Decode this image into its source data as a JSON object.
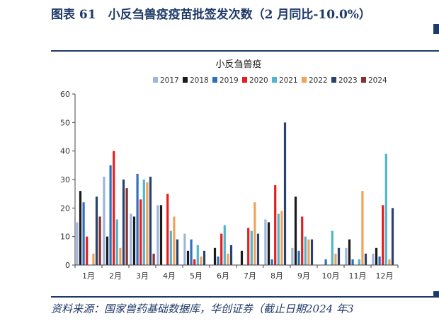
{
  "header": {
    "title": "图表 61　小反刍兽疫疫苗批签发次数（2 月同比-10.0%）"
  },
  "footer": {
    "source": "资料来源：国家兽药基础数据库，华创证券（截止日期2024 年3"
  },
  "chart_data": {
    "type": "bar",
    "title": "小反刍兽疫",
    "xlabel": "",
    "ylabel": "",
    "ylim": [
      0,
      60
    ],
    "yticks": [
      0,
      10,
      20,
      30,
      40,
      50,
      60
    ],
    "grid": false,
    "legend": "top-right",
    "categories": [
      "1月",
      "2月",
      "3月",
      "4月",
      "5月",
      "6月",
      "7月",
      "8月",
      "9月",
      "10月",
      "11月",
      "12月"
    ],
    "series": [
      {
        "name": "2017",
        "color": "#9cb6dc",
        "values": [
          15,
          31,
          18,
          21,
          11,
          0,
          0,
          16,
          6,
          0,
          6,
          4
        ]
      },
      {
        "name": "2018",
        "color": "#1b1b1b",
        "values": [
          26,
          10,
          17,
          21,
          5,
          6,
          5,
          15,
          24,
          0,
          9,
          6
        ]
      },
      {
        "name": "2019",
        "color": "#2f6fbf",
        "values": [
          22,
          35,
          32,
          0,
          9,
          3,
          0,
          2,
          5,
          2,
          2,
          3
        ]
      },
      {
        "name": "2020",
        "color": "#e61e1e",
        "values": [
          10,
          40,
          23,
          25,
          2,
          11,
          13,
          28,
          17,
          0,
          0,
          21
        ]
      },
      {
        "name": "2021",
        "color": "#4fb6cc",
        "values": [
          0,
          16,
          30,
          12,
          7,
          14,
          12,
          18,
          10,
          12,
          2,
          39
        ]
      },
      {
        "name": "2022",
        "color": "#f0a25c",
        "values": [
          4,
          6,
          29,
          17,
          3,
          4,
          22,
          19,
          9,
          4,
          26,
          2
        ]
      },
      {
        "name": "2023",
        "color": "#28446e",
        "values": [
          24,
          30,
          31,
          9,
          5,
          7,
          11,
          50,
          9,
          6,
          4,
          20
        ]
      },
      {
        "name": "2024",
        "color": "#8c2f2f",
        "values": [
          17,
          27,
          4,
          0,
          0,
          0,
          0,
          0,
          0,
          0,
          0,
          0
        ]
      }
    ]
  }
}
